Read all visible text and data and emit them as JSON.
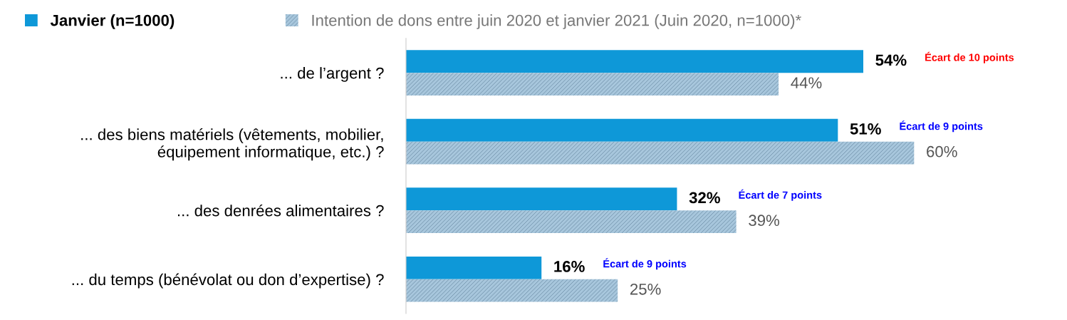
{
  "chart_data": {
    "type": "bar",
    "orientation": "horizontal",
    "categories": [
      "... de l’argent ?",
      "... des biens matériels (vêtements, mobilier,\néquipement informatique, etc.) ?",
      "... des denrées alimentaires ?",
      "... du temps (bénévolat ou don d’expertise) ?"
    ],
    "series": [
      {
        "name": "Janvier (n=1000)",
        "color": "#0e98d8",
        "values": [
          54,
          51,
          32,
          16
        ],
        "value_labels": [
          "54%",
          "51%",
          "32%",
          "16%"
        ]
      },
      {
        "name": "Intention de dons entre juin 2020 et janvier 2021 (Juin 2020, n=1000)*",
        "color": "#a7c6dc",
        "values": [
          44,
          60,
          39,
          25
        ],
        "value_labels": [
          "44%",
          "60%",
          "39%",
          "25%"
        ]
      }
    ],
    "tick_labels": "y",
    "legend": "top left",
    "grid": false,
    "annotations": [
      "Écart de 10 points",
      "Écart de 9 points",
      "Écart de 7 points",
      "Écart de 9 points"
    ]
  }
}
